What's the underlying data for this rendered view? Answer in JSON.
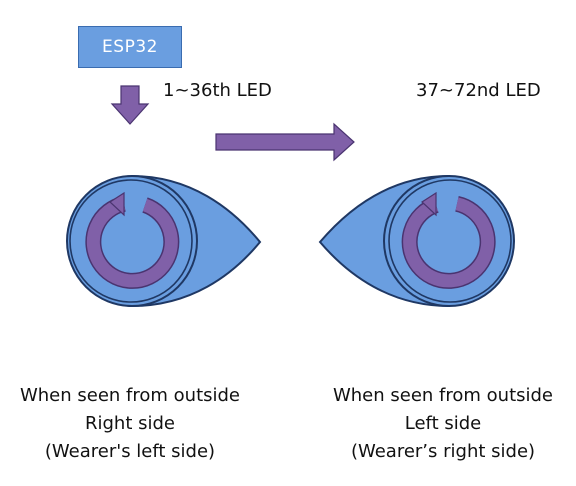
{
  "controller": {
    "label": "ESP32"
  },
  "segments": {
    "first": "1~36th LED",
    "second": "37~72nd LED"
  },
  "captions": {
    "left": {
      "line1": "When seen from outside",
      "line2": "Right side",
      "line3": "(Wearer's left side)"
    },
    "right": {
      "line1": "When seen from outside",
      "line2": "Left side",
      "line3": "(Wearer’s right side)"
    }
  },
  "colors": {
    "eye_fill": "#6a9ee0",
    "eye_stroke": "#1f3864",
    "arrow_fill": "#8060a8",
    "arrow_stroke": "#4a3470"
  }
}
